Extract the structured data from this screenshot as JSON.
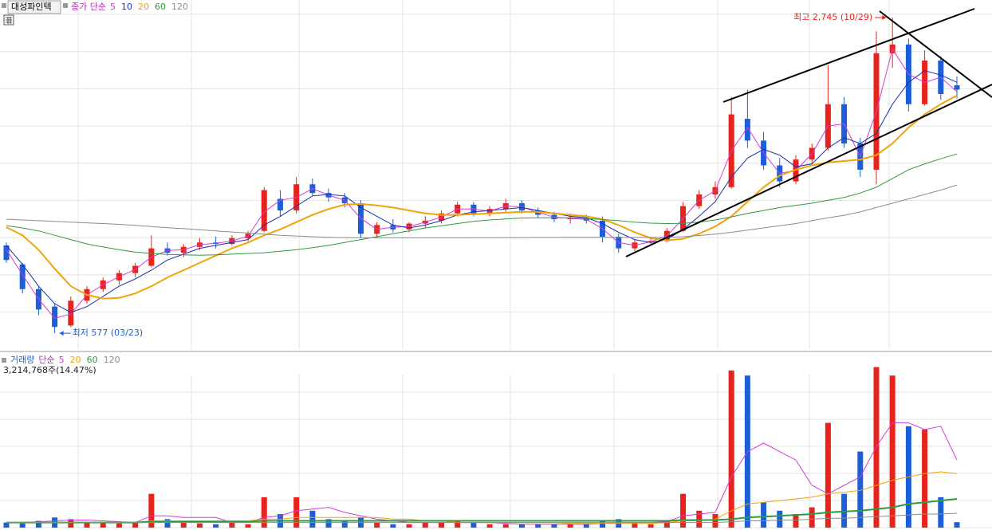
{
  "chart_data": [
    {
      "type": "candlestick",
      "title": "대성파인텍",
      "legend_title": "종가 단순",
      "high_label": "최고 2,745 (10/29)",
      "low_label": "최저 577 (03/23)",
      "up_color": "#e8231b",
      "down_color": "#1d5ed8",
      "ylim": [
        468,
        2811
      ],
      "open": [
        1180,
        1050,
        880,
        760,
        630,
        800,
        880,
        940,
        990,
        1040,
        1160,
        1130,
        1170,
        1200,
        1190,
        1230,
        1280,
        1500,
        1420,
        1600,
        1540,
        1510,
        1470,
        1260,
        1320,
        1290,
        1330,
        1350,
        1400,
        1460,
        1400,
        1430,
        1470,
        1420,
        1390,
        1360,
        1370,
        1350,
        1240,
        1160,
        1200,
        1210,
        1280,
        1450,
        1530,
        1580,
        2050,
        1900,
        1730,
        1620,
        1770,
        1850,
        2150,
        1880,
        1700,
        2500,
        2560,
        2150,
        2450,
        2280
      ],
      "high": [
        1200,
        1060,
        900,
        780,
        830,
        900,
        960,
        1010,
        1060,
        1250,
        1200,
        1190,
        1230,
        1240,
        1250,
        1280,
        1580,
        1560,
        1650,
        1640,
        1570,
        1540,
        1490,
        1340,
        1360,
        1340,
        1380,
        1420,
        1480,
        1480,
        1450,
        1500,
        1490,
        1440,
        1410,
        1400,
        1390,
        1380,
        1260,
        1220,
        1240,
        1300,
        1480,
        1560,
        1620,
        2200,
        2250,
        1960,
        1780,
        1800,
        1880,
        2420,
        2200,
        1920,
        2650,
        2745,
        2600,
        2520,
        2480,
        2340
      ],
      "low": [
        1060,
        850,
        700,
        577,
        620,
        780,
        860,
        910,
        960,
        1030,
        1110,
        1100,
        1150,
        1160,
        1180,
        1210,
        1270,
        1380,
        1400,
        1520,
        1480,
        1440,
        1230,
        1230,
        1270,
        1270,
        1300,
        1330,
        1380,
        1380,
        1380,
        1410,
        1400,
        1370,
        1340,
        1330,
        1330,
        1200,
        1130,
        1140,
        1180,
        1200,
        1270,
        1430,
        1500,
        1570,
        1850,
        1700,
        1580,
        1600,
        1740,
        1830,
        1850,
        1650,
        1600,
        2400,
        2100,
        2140,
        2180,
        2190
      ],
      "close": [
        1080,
        880,
        740,
        620,
        800,
        880,
        940,
        990,
        1040,
        1160,
        1130,
        1170,
        1200,
        1190,
        1230,
        1260,
        1560,
        1420,
        1600,
        1540,
        1510,
        1470,
        1260,
        1320,
        1290,
        1330,
        1350,
        1400,
        1460,
        1400,
        1430,
        1470,
        1420,
        1390,
        1360,
        1370,
        1350,
        1240,
        1160,
        1200,
        1210,
        1280,
        1450,
        1530,
        1580,
        2080,
        1900,
        1730,
        1620,
        1770,
        1850,
        2150,
        1880,
        1700,
        2500,
        2560,
        2150,
        2450,
        2220,
        2250
      ],
      "series": [
        {
          "name": "5",
          "color": "#d63ad6",
          "values": [
            1150,
            980,
            810,
            680,
            710,
            840,
            910,
            965,
            1015,
            1100,
            1145,
            1150,
            1185,
            1195,
            1210,
            1245,
            1410,
            1490,
            1510,
            1570,
            1525,
            1490,
            1365,
            1290,
            1305,
            1310,
            1340,
            1375,
            1430,
            1430,
            1415,
            1450,
            1445,
            1405,
            1375,
            1365,
            1360,
            1295,
            1200,
            1180,
            1205,
            1245,
            1365,
            1490,
            1555,
            1830,
            1990,
            1815,
            1675,
            1695,
            1810,
            2000,
            2015,
            1790,
            2100,
            2530,
            2355,
            2300,
            2335,
            2235
          ]
        },
        {
          "name": "10",
          "color": "#1a2fb0",
          "values": [
            1180,
            1050,
            900,
            780,
            720,
            760,
            830,
            900,
            950,
            1010,
            1080,
            1120,
            1160,
            1180,
            1200,
            1220,
            1320,
            1380,
            1450,
            1520,
            1530,
            1520,
            1440,
            1380,
            1320,
            1300,
            1320,
            1350,
            1390,
            1410,
            1420,
            1430,
            1440,
            1420,
            1400,
            1380,
            1370,
            1330,
            1270,
            1220,
            1200,
            1220,
            1290,
            1380,
            1480,
            1650,
            1780,
            1840,
            1800,
            1720,
            1740,
            1850,
            1920,
            1880,
            1950,
            2150,
            2300,
            2380,
            2350,
            2300
          ]
        },
        {
          "name": "20",
          "color": "#f0a30a",
          "values": [
            1305,
            1250,
            1150,
            1020,
            900,
            840,
            815,
            820,
            850,
            900,
            960,
            1010,
            1060,
            1110,
            1160,
            1200,
            1250,
            1290,
            1340,
            1390,
            1430,
            1460,
            1465,
            1455,
            1440,
            1420,
            1400,
            1390,
            1390,
            1395,
            1400,
            1405,
            1410,
            1410,
            1400,
            1390,
            1380,
            1360,
            1320,
            1270,
            1230,
            1215,
            1225,
            1260,
            1310,
            1380,
            1480,
            1580,
            1660,
            1700,
            1730,
            1750,
            1760,
            1770,
            1800,
            1880,
            1990,
            2080,
            2150,
            2210
          ]
        },
        {
          "name": "60",
          "color": "#2e9b3e",
          "values": [
            1316,
            1300,
            1280,
            1250,
            1220,
            1190,
            1170,
            1150,
            1135,
            1125,
            1118,
            1115,
            1113,
            1115,
            1120,
            1125,
            1130,
            1140,
            1150,
            1165,
            1180,
            1200,
            1220,
            1240,
            1260,
            1280,
            1300,
            1315,
            1330,
            1345,
            1355,
            1362,
            1368,
            1370,
            1370,
            1370,
            1365,
            1358,
            1350,
            1340,
            1333,
            1330,
            1332,
            1340,
            1355,
            1375,
            1400,
            1420,
            1440,
            1455,
            1470,
            1490,
            1510,
            1540,
            1580,
            1640,
            1700,
            1740,
            1775,
            1808
          ]
        },
        {
          "name": "120",
          "color": "#8c8c8c",
          "values": [
            1360,
            1355,
            1350,
            1345,
            1340,
            1335,
            1330,
            1325,
            1318,
            1310,
            1302,
            1295,
            1288,
            1280,
            1272,
            1265,
            1258,
            1250,
            1245,
            1240,
            1236,
            1234,
            1233,
            1232,
            1232,
            1232,
            1232,
            1232,
            1232,
            1233,
            1233,
            1234,
            1234,
            1235,
            1235,
            1236,
            1236,
            1236,
            1235,
            1235,
            1235,
            1236,
            1240,
            1248,
            1258,
            1270,
            1285,
            1300,
            1315,
            1330,
            1350,
            1370,
            1387,
            1410,
            1440,
            1470,
            1500,
            1530,
            1560,
            1595
          ]
        }
      ]
    },
    {
      "type": "bar",
      "title": "거래량",
      "legend_title": "단순",
      "subtitle": "3,214,768주(14.47%)",
      "ylim": [
        0,
        100000000
      ],
      "values": [
        3000000,
        2500000,
        4000000,
        6000000,
        5000000,
        3000000,
        3000000,
        2500000,
        3000000,
        20000000,
        5000000,
        3000000,
        2500000,
        2000000,
        3000000,
        2000000,
        18000000,
        8000000,
        18000000,
        10000000,
        5000000,
        4000000,
        6000000,
        3000000,
        2000000,
        2000000,
        3000000,
        3000000,
        4000000,
        3000000,
        2000000,
        2000000,
        2000000,
        2000000,
        2000000,
        2000000,
        2000000,
        4000000,
        5000000,
        3000000,
        2000000,
        4000000,
        20000000,
        10000000,
        8000000,
        93000000,
        90000000,
        15000000,
        10000000,
        8000000,
        12000000,
        62000000,
        20000000,
        45000000,
        95000000,
        90000000,
        60000000,
        58000000,
        18000000,
        3214768
      ],
      "series": [
        {
          "name": "5",
          "color": "#d63ad6",
          "values": [
            3000000,
            3000000,
            3500000,
            4000000,
            4500000,
            4500000,
            4000000,
            3500000,
            3000000,
            7000000,
            7000000,
            6000000,
            6000000,
            6000000,
            3000000,
            3000000,
            6000000,
            7000000,
            10000000,
            11000000,
            12000000,
            9000000,
            7000000,
            5000000,
            4000000,
            3000000,
            3000000,
            3000000,
            3000000,
            3000000,
            3000000,
            2500000,
            2000000,
            2000000,
            2000000,
            2000000,
            2000000,
            2500000,
            3000000,
            3000000,
            3000000,
            3500000,
            7000000,
            8000000,
            9000000,
            30000000,
            45000000,
            50000000,
            45000000,
            40000000,
            25000000,
            20000000,
            25000000,
            30000000,
            48000000,
            62000000,
            62000000,
            58000000,
            60000000,
            40000000
          ]
        },
        {
          "name": "20",
          "color": "#f0a30a",
          "values": [
            3000000,
            3000000,
            3000000,
            3000000,
            3000000,
            3000000,
            3000000,
            3000000,
            3000000,
            4000000,
            4000000,
            4000000,
            4000000,
            4000000,
            4000000,
            4000000,
            5000000,
            5000000,
            6000000,
            6000000,
            6000000,
            6000000,
            6000000,
            6000000,
            5000000,
            5000000,
            4000000,
            4000000,
            3000000,
            3000000,
            3000000,
            3000000,
            3000000,
            3000000,
            3000000,
            2500000,
            2500000,
            2500000,
            2500000,
            2500000,
            2500000,
            3000000,
            4000000,
            4000000,
            5000000,
            10000000,
            14000000,
            15000000,
            16000000,
            17000000,
            18000000,
            20000000,
            21000000,
            22000000,
            25000000,
            28000000,
            30000000,
            32000000,
            33000000,
            32000000
          ]
        },
        {
          "name": "60",
          "color": "#2e9b3e",
          "values": [
            3000000,
            3000000,
            3000000,
            3000000,
            3000000,
            3000000,
            3000000,
            3000000,
            3000000,
            3500000,
            3500000,
            3500000,
            3500000,
            3500000,
            3500000,
            3500000,
            4000000,
            4000000,
            4000000,
            4000000,
            4000000,
            4000000,
            4000000,
            4000000,
            4000000,
            4000000,
            4000000,
            4000000,
            4000000,
            4000000,
            4000000,
            4000000,
            4000000,
            4000000,
            4000000,
            4000000,
            4000000,
            4000000,
            4000000,
            4000000,
            4000000,
            4000000,
            4500000,
            4500000,
            4500000,
            5000000,
            6000000,
            6500000,
            7000000,
            7500000,
            8000000,
            9000000,
            9500000,
            10000000,
            11000000,
            12000000,
            14000000,
            15000000,
            16000000,
            17000000
          ]
        },
        {
          "name": "120",
          "color": "#8c8c8c",
          "values": [
            3000000,
            3000000,
            3000000,
            3000000,
            3000000,
            3000000,
            3000000,
            3000000,
            3000000,
            3000000,
            3000000,
            3000000,
            3000000,
            3000000,
            3000000,
            3000000,
            3000000,
            3000000,
            3000000,
            3000000,
            3000000,
            3000000,
            3000000,
            3000000,
            3000000,
            3000000,
            3000000,
            3000000,
            3000000,
            3000000,
            3000000,
            3000000,
            3000000,
            3000000,
            3000000,
            3000000,
            3000000,
            3000000,
            3000000,
            3000000,
            3000000,
            3000000,
            3000000,
            3000000,
            3000000,
            3500000,
            4000000,
            4000000,
            4500000,
            4500000,
            5000000,
            5500000,
            5500000,
            6000000,
            6500000,
            7000000,
            7500000,
            8000000,
            8000000,
            8500000
          ]
        }
      ]
    }
  ]
}
